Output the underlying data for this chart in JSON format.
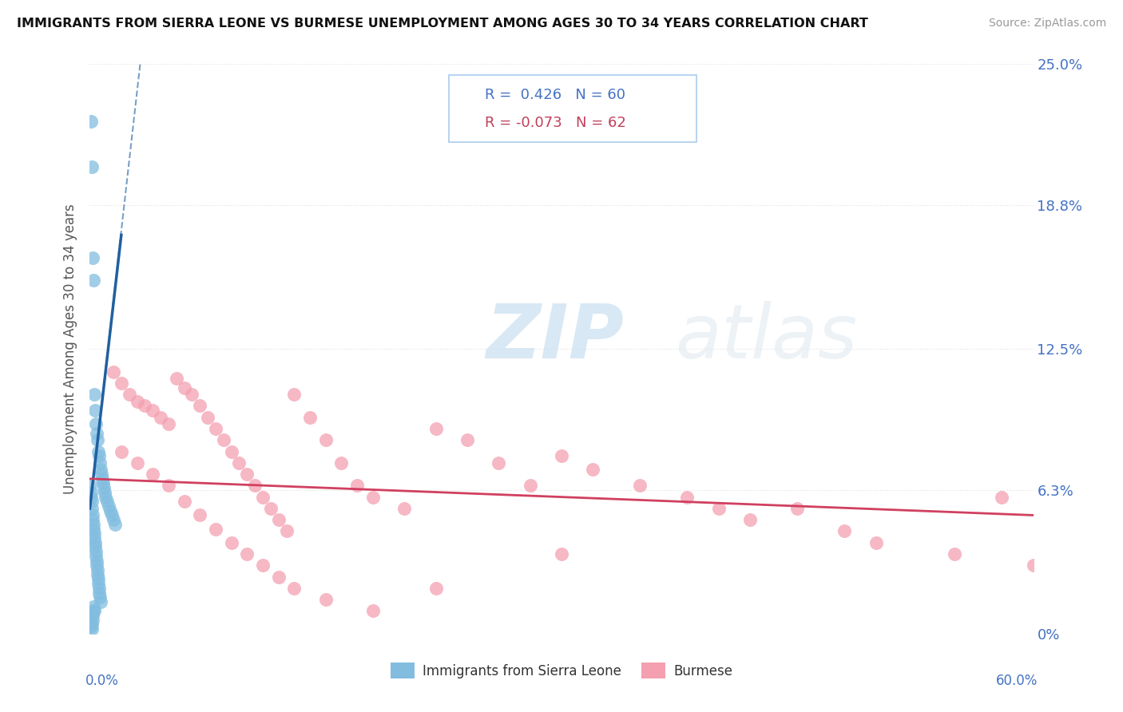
{
  "title": "IMMIGRANTS FROM SIERRA LEONE VS BURMESE UNEMPLOYMENT AMONG AGES 30 TO 34 YEARS CORRELATION CHART",
  "source": "Source: ZipAtlas.com",
  "ylabel": "Unemployment Among Ages 30 to 34 years",
  "ytick_labels": [
    "0%",
    "6.3%",
    "12.5%",
    "18.8%",
    "25.0%"
  ],
  "ytick_values": [
    0,
    6.3,
    12.5,
    18.8,
    25.0
  ],
  "xlim": [
    0,
    60
  ],
  "ylim": [
    0,
    25
  ],
  "series1_label": "Immigrants from Sierra Leone",
  "series1_color": "#82bde0",
  "series1_line_color": "#2060a0",
  "series1_R": 0.426,
  "series1_N": 60,
  "series2_label": "Burmese",
  "series2_color": "#f4a0b0",
  "series2_line_color": "#d04060",
  "series2_R": -0.073,
  "series2_N": 62,
  "watermark_zip": "ZIP",
  "watermark_atlas": "atlas",
  "background_color": "#ffffff",
  "grid_color": "#e0e0e0",
  "sl_x": [
    0.1,
    0.15,
    0.2,
    0.25,
    0.3,
    0.35,
    0.4,
    0.45,
    0.5,
    0.55,
    0.6,
    0.65,
    0.7,
    0.75,
    0.8,
    0.85,
    0.9,
    0.95,
    1.0,
    1.1,
    1.2,
    1.3,
    1.4,
    1.5,
    1.6,
    0.05,
    0.08,
    0.1,
    0.12,
    0.15,
    0.18,
    0.2,
    0.22,
    0.25,
    0.28,
    0.3,
    0.32,
    0.35,
    0.38,
    0.4,
    0.42,
    0.45,
    0.48,
    0.5,
    0.52,
    0.55,
    0.58,
    0.6,
    0.65,
    0.7,
    0.05,
    0.08,
    0.1,
    0.12,
    0.15,
    0.18,
    0.2,
    0.22,
    0.25,
    0.3
  ],
  "sl_y": [
    22.5,
    20.5,
    16.5,
    15.5,
    10.5,
    9.8,
    9.2,
    8.8,
    8.5,
    8.0,
    7.8,
    7.5,
    7.2,
    7.0,
    6.8,
    6.6,
    6.4,
    6.2,
    6.0,
    5.8,
    5.6,
    5.4,
    5.2,
    5.0,
    4.8,
    6.5,
    6.2,
    6.0,
    5.8,
    5.5,
    5.2,
    5.0,
    4.8,
    4.6,
    4.4,
    4.2,
    4.0,
    3.8,
    3.6,
    3.4,
    3.2,
    3.0,
    2.8,
    2.6,
    2.4,
    2.2,
    2.0,
    1.8,
    1.6,
    1.4,
    0.8,
    0.5,
    0.3,
    0.2,
    0.4,
    0.6,
    0.8,
    1.0,
    1.2,
    1.0
  ],
  "bu_x": [
    1.5,
    2.0,
    2.5,
    3.0,
    3.5,
    4.0,
    4.5,
    5.0,
    5.5,
    6.0,
    6.5,
    7.0,
    7.5,
    8.0,
    8.5,
    9.0,
    9.5,
    10.0,
    10.5,
    11.0,
    11.5,
    12.0,
    12.5,
    13.0,
    14.0,
    15.0,
    16.0,
    17.0,
    18.0,
    20.0,
    22.0,
    24.0,
    26.0,
    28.0,
    30.0,
    32.0,
    35.0,
    38.0,
    40.0,
    42.0,
    45.0,
    48.0,
    50.0,
    55.0,
    58.0,
    60.0,
    2.0,
    3.0,
    4.0,
    5.0,
    6.0,
    7.0,
    8.0,
    9.0,
    10.0,
    11.0,
    12.0,
    13.0,
    15.0,
    18.0,
    22.0,
    30.0
  ],
  "bu_y": [
    11.5,
    11.0,
    10.5,
    10.2,
    10.0,
    9.8,
    9.5,
    9.2,
    11.2,
    10.8,
    10.5,
    10.0,
    9.5,
    9.0,
    8.5,
    8.0,
    7.5,
    7.0,
    6.5,
    6.0,
    5.5,
    5.0,
    4.5,
    10.5,
    9.5,
    8.5,
    7.5,
    6.5,
    6.0,
    5.5,
    9.0,
    8.5,
    7.5,
    6.5,
    7.8,
    7.2,
    6.5,
    6.0,
    5.5,
    5.0,
    5.5,
    4.5,
    4.0,
    3.5,
    6.0,
    3.0,
    8.0,
    7.5,
    7.0,
    6.5,
    5.8,
    5.2,
    4.6,
    4.0,
    3.5,
    3.0,
    2.5,
    2.0,
    1.5,
    1.0,
    2.0,
    3.5
  ],
  "sl_trend_x0": 0.0,
  "sl_trend_y0": 5.5,
  "sl_trend_x1": 2.5,
  "sl_trend_y1": 18.0,
  "sl_trend_dash_x1": 3.5,
  "sl_trend_dash_y1": 25.0,
  "bu_trend_x0": 0.0,
  "bu_trend_y0": 6.8,
  "bu_trend_x1": 60.0,
  "bu_trend_y1": 5.2
}
